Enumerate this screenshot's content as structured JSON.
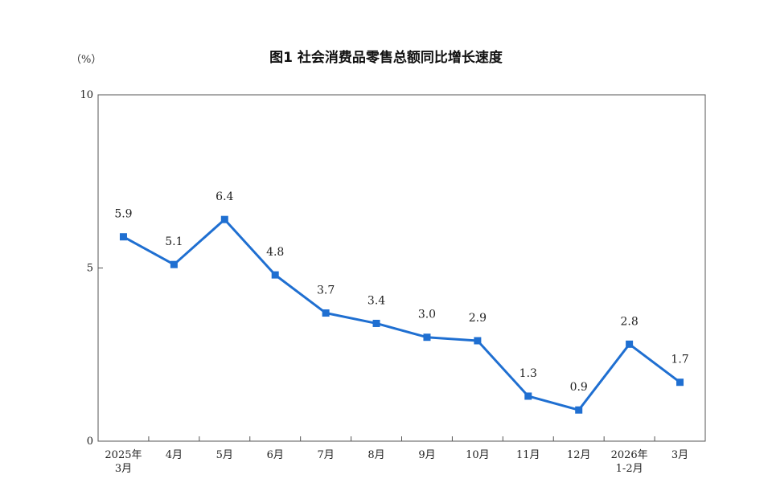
{
  "chart_data": {
    "type": "line",
    "title": "图1  社会消费品零售总额同比增长速度",
    "unit": "（%）",
    "categories": [
      [
        "2025年",
        "3月"
      ],
      [
        "4月"
      ],
      [
        "5月"
      ],
      [
        "6月"
      ],
      [
        "7月"
      ],
      [
        "8月"
      ],
      [
        "9月"
      ],
      [
        "10月"
      ],
      [
        "11月"
      ],
      [
        "12月"
      ],
      [
        "2026年",
        "1-2月"
      ],
      [
        "3月"
      ]
    ],
    "values": [
      5.9,
      5.1,
      6.4,
      4.8,
      3.7,
      3.4,
      3.0,
      2.9,
      1.3,
      0.9,
      2.8,
      1.7
    ],
    "value_labels": [
      "5.9",
      "5.1",
      "6.4",
      "4.8",
      "3.7",
      "3.4",
      "3.0",
      "2.9",
      "1.3",
      "0.9",
      "2.8",
      "1.7"
    ],
    "ylim": [
      0,
      10
    ],
    "yticks": [
      0,
      5,
      10
    ],
    "grid": false,
    "line_color": "#1f6fd1",
    "marker": "square"
  }
}
